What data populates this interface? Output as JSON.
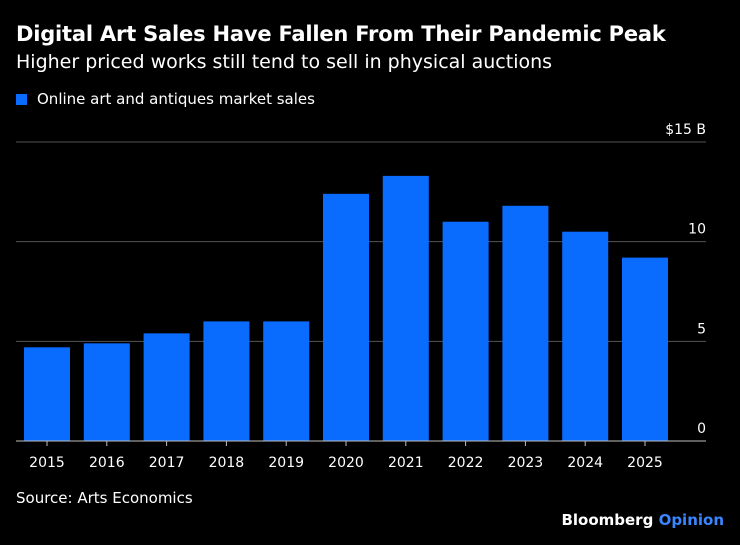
{
  "header": {
    "title": "Digital Art Sales Have Fallen From Their Pandemic Peak",
    "subtitle": "Higher priced works still tend to sell in physical auctions"
  },
  "colors": {
    "bar": "#0a6bff",
    "gridline": "#555555",
    "baseline": "#bfbfbf",
    "text": "#ffffff",
    "accent": "#3a86ff"
  },
  "chart_data": {
    "type": "bar",
    "categories": [
      "2015",
      "2016",
      "2017",
      "2018",
      "2019",
      "2020",
      "2021",
      "2022",
      "2023",
      "2024",
      "2025"
    ],
    "series": [
      {
        "name": "Online art and antiques market sales",
        "values": [
          4.7,
          4.9,
          5.4,
          6.0,
          6.0,
          12.4,
          13.3,
          11.0,
          11.8,
          10.5,
          9.2
        ]
      }
    ],
    "yticks": [
      {
        "value": 0,
        "label": "0"
      },
      {
        "value": 5,
        "label": "5"
      },
      {
        "value": 10,
        "label": "10"
      },
      {
        "value": 15,
        "label": "$15 B"
      }
    ],
    "ylim": [
      0,
      15
    ],
    "grid": true,
    "legend": "top-left"
  },
  "footer": {
    "source": "Source: Arts Economics",
    "brand_main": "Bloomberg",
    "brand_accent": "Opinion"
  }
}
